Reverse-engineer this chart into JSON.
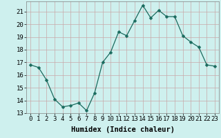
{
  "x": [
    0,
    1,
    2,
    3,
    4,
    5,
    6,
    7,
    8,
    9,
    10,
    11,
    12,
    13,
    14,
    15,
    16,
    17,
    18,
    19,
    20,
    21,
    22,
    23
  ],
  "y": [
    16.8,
    16.6,
    15.6,
    14.1,
    13.5,
    13.6,
    13.8,
    13.2,
    14.6,
    17.0,
    17.8,
    19.4,
    19.1,
    20.3,
    21.5,
    20.5,
    21.1,
    20.6,
    20.6,
    19.1,
    18.6,
    18.2,
    16.8,
    16.7
  ],
  "line_color": "#1a6b5e",
  "marker": "D",
  "marker_size": 2.5,
  "bg_color": "#cef0ee",
  "grid_color": "#c8a8a8",
  "xlabel": "Humidex (Indice chaleur)",
  "xlim": [
    -0.5,
    23.5
  ],
  "ylim": [
    13,
    21.8
  ],
  "yticks": [
    13,
    14,
    15,
    16,
    17,
    18,
    19,
    20,
    21
  ],
  "xticks": [
    0,
    1,
    2,
    3,
    4,
    5,
    6,
    7,
    8,
    9,
    10,
    11,
    12,
    13,
    14,
    15,
    16,
    17,
    18,
    19,
    20,
    21,
    22,
    23
  ],
  "xlabel_fontsize": 7.5,
  "tick_fontsize": 6.5
}
